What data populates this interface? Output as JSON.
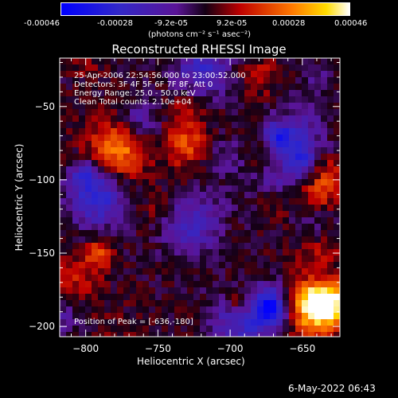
{
  "colorbar": {
    "tick_labels": [
      "-0.00046",
      "-0.00028",
      "-9.2e-05",
      "9.2e-05",
      "0.00028",
      "0.00046"
    ],
    "unit_label": "(photons cm⁻² s⁻¹ asec⁻²)",
    "range": [
      -0.00046,
      0.00046
    ]
  },
  "chart_data": {
    "type": "heatmap",
    "title": "Reconstructed RHESSI Image",
    "xlabel": "Heliocentric X (arcsec)",
    "ylabel": "Heliocentric Y (arcsec)",
    "xlim": [
      -818,
      -624
    ],
    "ylim": [
      -207,
      -17
    ],
    "xticks": [
      -800,
      -750,
      -700,
      -650
    ],
    "yticks": [
      -50,
      -100,
      -150,
      -200
    ],
    "annotations": [
      "25-Apr-2006 22:54:56.000 to 23:00:52.000",
      "Detectors: 3F 4F 5F 6F 7F 8F, Att 0",
      "Energy Range: 25.0 - 50.0 keV",
      "Clean    Total counts: 2.10e+04"
    ],
    "peak_label": "Position of Peak = [-636,-180]",
    "peak": [
      -636,
      -180
    ]
  },
  "footer": {
    "date": "6-May-2022 06:43"
  }
}
